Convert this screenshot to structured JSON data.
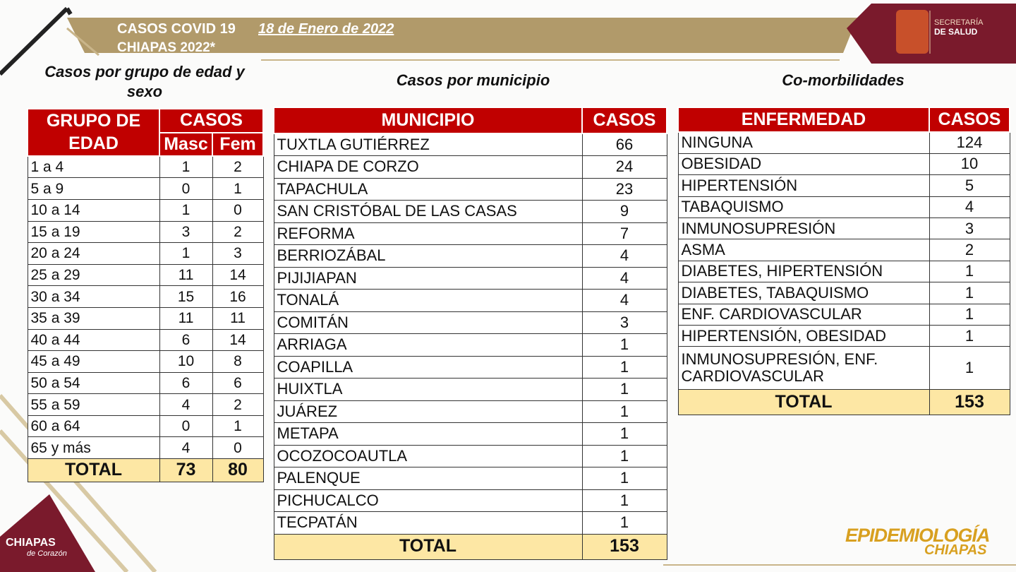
{
  "header": {
    "title": "CASOS COVID 19",
    "date": "18 de Enero de 2022",
    "subtitle": "CHIAPAS 2022*",
    "logo_line1": "SECRETARÍA",
    "logo_line2": "DE SALUD"
  },
  "age_table": {
    "title": "Casos por grupo de edad y sexo",
    "headers": [
      "GRUPO DE EDAD",
      "CASOS",
      "Masc",
      "Fem"
    ],
    "rows": [
      [
        "1 a 4",
        1,
        2
      ],
      [
        "5 a 9",
        0,
        1
      ],
      [
        "10 a 14",
        1,
        0
      ],
      [
        "15 a 19",
        3,
        2
      ],
      [
        "20 a 24",
        1,
        3
      ],
      [
        "25 a 29",
        11,
        14
      ],
      [
        "30 a 34",
        15,
        16
      ],
      [
        "35 a 39",
        11,
        11
      ],
      [
        "40 a 44",
        6,
        14
      ],
      [
        "45 a 49",
        10,
        8
      ],
      [
        "50 a 54",
        6,
        6
      ],
      [
        "55 a 59",
        4,
        2
      ],
      [
        "60 a 64",
        0,
        1
      ],
      [
        "65 y más",
        4,
        0
      ]
    ],
    "total": [
      "TOTAL",
      73,
      80
    ]
  },
  "municipio_table": {
    "title": "Casos por municipio",
    "headers": [
      "MUNICIPIO",
      "CASOS"
    ],
    "rows": [
      [
        "TUXTLA GUTIÉRREZ",
        66
      ],
      [
        "CHIAPA DE CORZO",
        24
      ],
      [
        "TAPACHULA",
        23
      ],
      [
        "SAN CRISTÓBAL DE LAS CASAS",
        9
      ],
      [
        "REFORMA",
        7
      ],
      [
        "BERRIOZÁBAL",
        4
      ],
      [
        "PIJIJIAPAN",
        4
      ],
      [
        "TONALÁ",
        4
      ],
      [
        "COMITÁN",
        3
      ],
      [
        "ARRIAGA",
        1
      ],
      [
        "COAPILLA",
        1
      ],
      [
        "HUIXTLA",
        1
      ],
      [
        "JUÁREZ",
        1
      ],
      [
        "METAPA",
        1
      ],
      [
        "OCOZOCOAUTLA",
        1
      ],
      [
        "PALENQUE",
        1
      ],
      [
        "PICHUCALCO",
        1
      ],
      [
        "TECPATÁN",
        1
      ]
    ],
    "total": [
      "TOTAL",
      153
    ]
  },
  "comorb_table": {
    "title": "Co-morbilidades",
    "headers": [
      "ENFERMEDAD",
      "CASOS"
    ],
    "rows": [
      [
        "NINGUNA",
        124
      ],
      [
        "OBESIDAD",
        10
      ],
      [
        "HIPERTENSIÓN",
        5
      ],
      [
        "TABAQUISMO",
        4
      ],
      [
        "INMUNOSUPRESIÓN",
        3
      ],
      [
        "ASMA",
        2
      ],
      [
        "DIABETES, HIPERTENSIÓN",
        1
      ],
      [
        "DIABETES, TABAQUISMO",
        1
      ],
      [
        "ENF. CARDIOVASCULAR",
        1
      ],
      [
        "HIPERTENSIÓN, OBESIDAD",
        1
      ],
      [
        "INMUNOSUPRESIÓN, ENF. CARDIOVASCULAR",
        1
      ]
    ],
    "total": [
      "TOTAL",
      153
    ]
  },
  "footer": {
    "left_logo": "CHIAPAS",
    "left_logo_sub": "de Corazón",
    "right_logo_1": "EPIDEMIOLOGÍA",
    "right_logo_2": "CHIAPAS"
  }
}
